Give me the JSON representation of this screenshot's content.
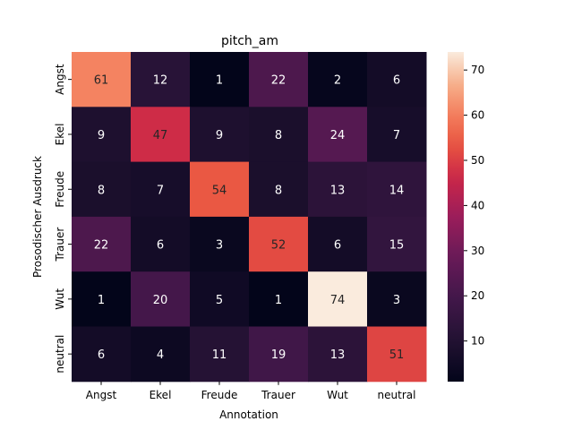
{
  "chart_data": {
    "type": "heatmap",
    "title": "pitch_am",
    "xlabel": "Annotation",
    "ylabel": "Prosodischer Ausdruck",
    "x_categories": [
      "Angst",
      "Ekel",
      "Freude",
      "Trauer",
      "Wut",
      "neutral"
    ],
    "y_categories": [
      "Angst",
      "Ekel",
      "Freude",
      "Trauer",
      "Wut",
      "neutral"
    ],
    "values": [
      [
        61,
        12,
        1,
        22,
        2,
        6
      ],
      [
        9,
        47,
        9,
        8,
        24,
        7
      ],
      [
        8,
        7,
        54,
        8,
        13,
        14
      ],
      [
        22,
        6,
        3,
        52,
        6,
        15
      ],
      [
        1,
        20,
        5,
        1,
        74,
        3
      ],
      [
        6,
        4,
        11,
        19,
        13,
        51
      ]
    ],
    "colorbar": {
      "vmin": 1,
      "vmax": 74,
      "ticks": [
        10,
        20,
        30,
        40,
        50,
        60,
        70
      ],
      "colormap": "rocket"
    }
  }
}
